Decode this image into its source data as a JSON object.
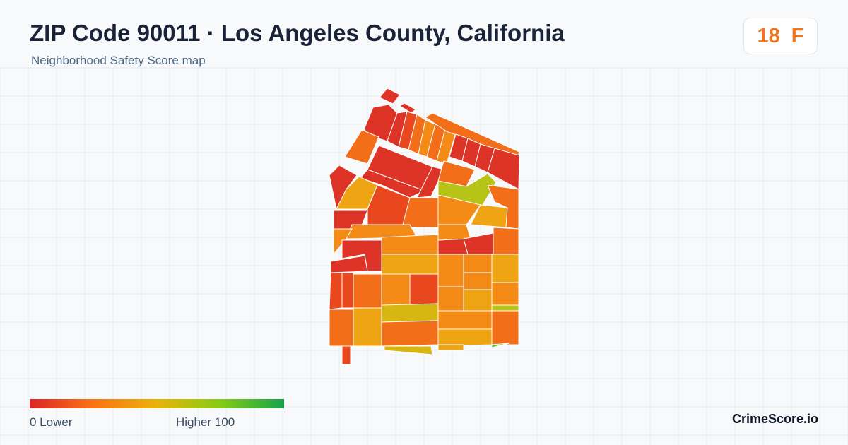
{
  "header": {
    "title": "ZIP Code 90011 · Los Angeles County, California",
    "subtitle": "Neighborhood Safety Score map"
  },
  "score_badge": {
    "score": "18",
    "grade": "F",
    "color": "#f07520"
  },
  "legend": {
    "low_label": "0  Lower",
    "high_label": "Higher  100",
    "colors": [
      "#dc2626",
      "#f97316",
      "#eab308",
      "#84cc16",
      "#16a34a"
    ]
  },
  "footer": {
    "brand": "CrimeScore.io"
  },
  "palette": {
    "red": "#de3427",
    "red_orange": "#e9481f",
    "orange": "#f26e19",
    "light_orange": "#f38b16",
    "amber": "#eea413",
    "yellow": "#d8b612",
    "yellow_green": "#b5c417",
    "green": "#5ebd2d"
  }
}
